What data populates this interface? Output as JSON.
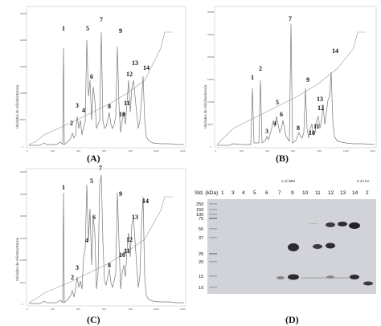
{
  "panels": {
    "A": {
      "label": "(A)",
      "y_axis_label": "Unidades de miliAbsorbancia",
      "x_ticks": [
        "0",
        "200",
        "400",
        "600",
        "800",
        "1000",
        "1200"
      ],
      "y_ticks": [
        "0",
        "5000",
        "10000",
        "15000",
        "20000",
        "25000"
      ],
      "peaks": [
        "1",
        "2",
        "3",
        "4",
        "5",
        "6",
        "7",
        "8",
        "9",
        "10",
        "11",
        "12",
        "13",
        "14"
      ]
    },
    "B": {
      "label": "(B)",
      "y_axis_label": "Unidades de miliAbsorbancia",
      "x_ticks": [
        "0",
        "200",
        "400",
        "600",
        "800",
        "1000",
        "1200"
      ],
      "y_ticks": [
        "0",
        "5000",
        "10000",
        "15000",
        "20000",
        "25000",
        "30000"
      ],
      "peaks": [
        "1",
        "2",
        "3",
        "4",
        "5",
        "6",
        "7",
        "8",
        "9",
        "10",
        "11",
        "12",
        "13",
        "14"
      ]
    },
    "C": {
      "label": "(C)",
      "y_axis_label": "Unidades de miliAbsorbancia",
      "x_ticks": [
        "0",
        "200",
        "400",
        "600",
        "800",
        "1000",
        "1200"
      ],
      "y_ticks": [
        "0",
        "5000",
        "10000",
        "15000",
        "20000",
        "25000",
        "30000"
      ],
      "peaks": [
        "1",
        "2",
        "3",
        "4",
        "5",
        "6",
        "7",
        "8",
        "9",
        "10",
        "11",
        "12",
        "13",
        "14"
      ]
    },
    "D": {
      "label": "(D)",
      "header_std": "Std. (kDa)",
      "lanes": [
        "1",
        "3",
        "4",
        "5",
        "6",
        "7",
        "9",
        "10",
        "11",
        "12",
        "13",
        "14",
        "2"
      ],
      "tag_mm": "C.d.l MM",
      "tag_ca": "C.d.l CA",
      "mw_markers": [
        "250",
        "150",
        "100",
        "75",
        "50",
        "37",
        "25",
        "20",
        "15",
        "10"
      ]
    }
  }
}
